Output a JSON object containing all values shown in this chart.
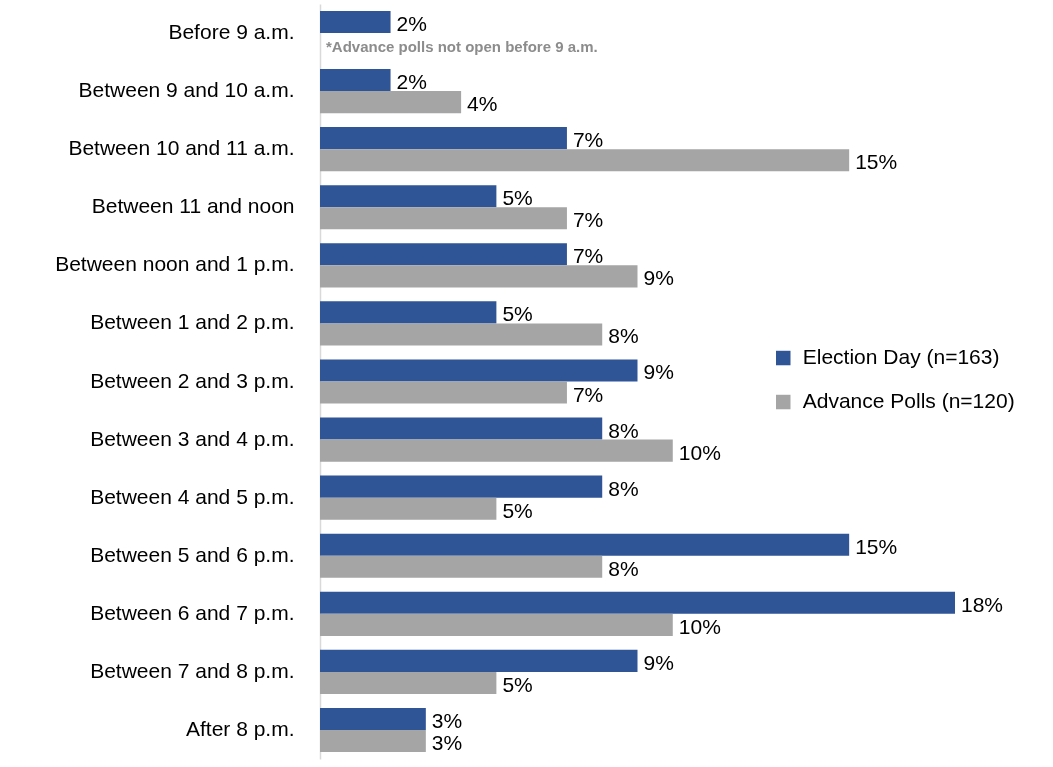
{
  "chart_data": {
    "type": "bar",
    "orientation": "horizontal",
    "categories": [
      "Before 9 a.m.",
      "Between 9 and 10 a.m.",
      "Between 10 and 11 a.m.",
      "Between 11 and noon",
      "Between noon and 1 p.m.",
      "Between 1 and 2 p.m.",
      "Between 2 and 3 p.m.",
      "Between 3 and 4 p.m.",
      "Between 4 and 5 p.m.",
      "Between 5 and 6 p.m.",
      "Between 6 and 7 p.m.",
      "Between 7 and 8 p.m.",
      "After 8 p.m."
    ],
    "series": [
      {
        "name": "Election Day (n=163)",
        "color": "#2f5597",
        "values": [
          2,
          2,
          7,
          5,
          7,
          5,
          9,
          8,
          8,
          15,
          18,
          9,
          3
        ],
        "value_labels": [
          "2%",
          "2%",
          "7%",
          "5%",
          "7%",
          "5%",
          "9%",
          "8%",
          "8%",
          "15%",
          "18%",
          "9%",
          "3%"
        ]
      },
      {
        "name": "Advance Polls (n=120)",
        "color": "#a5a5a5",
        "values": [
          null,
          4,
          15,
          7,
          9,
          8,
          7,
          10,
          5,
          8,
          10,
          5,
          3
        ],
        "value_labels": [
          null,
          "4%",
          "15%",
          "7%",
          "9%",
          "8%",
          "7%",
          "10%",
          "5%",
          "8%",
          "10%",
          "5%",
          "3%"
        ]
      }
    ],
    "annotations": [
      {
        "text": "*Advance polls not open before 9 a.m.",
        "x": 0,
        "y": "Before 9 a.m."
      }
    ],
    "legend": "right"
  }
}
